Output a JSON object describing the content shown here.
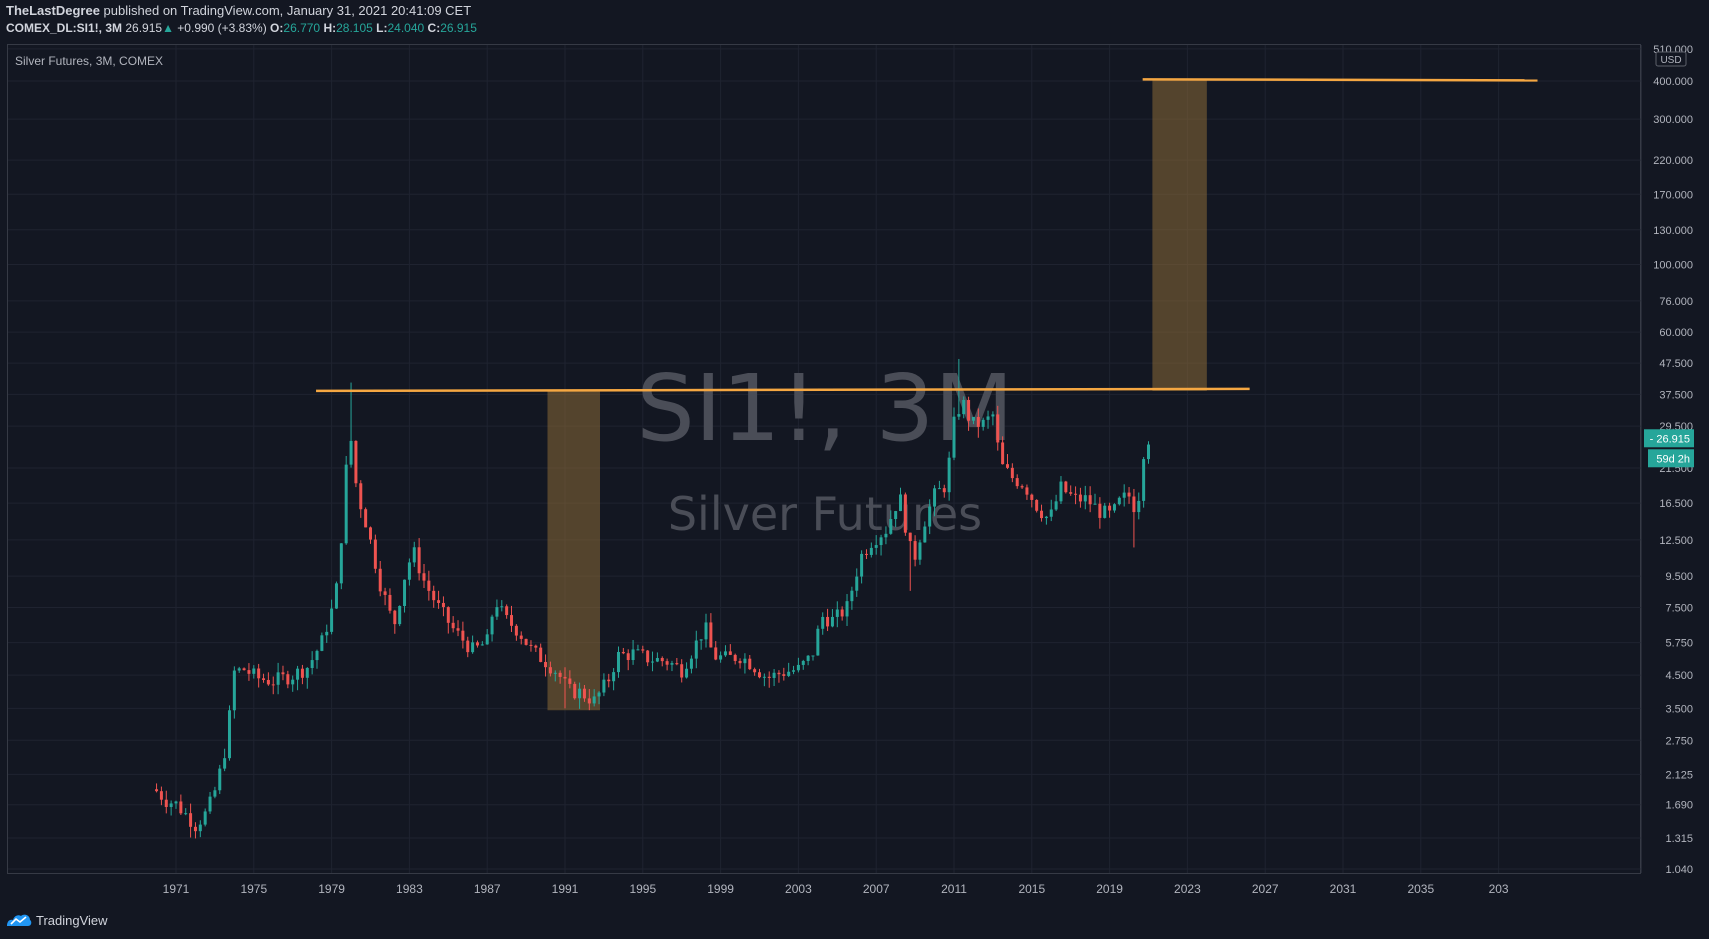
{
  "header": {
    "author": "TheLastDegree",
    "published_text": "published on TradingView.com, January 31, 2021 20:41:09 CET",
    "symbol": "COMEX_DL:SI1!, 3M",
    "last": "26.915",
    "change": "+0.990 (+3.83%)",
    "o_label": "O:",
    "o": "26.770",
    "h_label": "H:",
    "h": "28.105",
    "l_label": "L:",
    "l": "24.040",
    "c_label": "C:",
    "c": "26.915"
  },
  "footer": {
    "brand": "TradingView"
  },
  "chart_data": {
    "type": "candlestick",
    "instrument_label": "Silver Futures, 3M, COMEX",
    "watermark_symbol": "SI1!, 3M",
    "watermark_name": "Silver Futures",
    "currency": "USD",
    "y_scale": "log",
    "y_ticks": [
      "1.040",
      "1.315",
      "1.690",
      "2.125",
      "2.750",
      "3.500",
      "4.500",
      "5.750",
      "7.500",
      "9.500",
      "12.500",
      "16.500",
      "21.500",
      "29.500",
      "37.500",
      "47.500",
      "60.000",
      "76.000",
      "100.000",
      "130.000",
      "170.000",
      "220.000",
      "300.000",
      "400.000",
      "510.000"
    ],
    "x_ticks": [
      "1971",
      "1975",
      "1979",
      "1983",
      "1987",
      "1991",
      "1995",
      "1999",
      "2003",
      "2007",
      "2011",
      "2015",
      "2019",
      "2023",
      "2027",
      "2031",
      "2035",
      "203"
    ],
    "last_price_label": "26.915",
    "countdown_label": "59d 2h",
    "colors": {
      "up": "#26a69a",
      "down": "#ef5350",
      "line": "#f5a742",
      "box": "#8a6a36"
    },
    "horizontal_lines": [
      {
        "price": 38.5,
        "from": 1978.2,
        "to": 2026.2
      },
      {
        "price": 405,
        "from": 2020.7,
        "to": 2041
      }
    ],
    "boxes": [
      {
        "x0": 1990.1,
        "x1": 1992.8,
        "y_low": 3.45,
        "y_high": 38.5
      },
      {
        "x0": 2021.2,
        "x1": 2024.0,
        "y_low": 38.5,
        "y_high": 405
      }
    ],
    "anchors": [
      [
        1969.9,
        1.9
      ],
      [
        1970.5,
        1.75
      ],
      [
        1971.0,
        1.7
      ],
      [
        1971.6,
        1.55
      ],
      [
        1972.0,
        1.45
      ],
      [
        1972.6,
        1.6
      ],
      [
        1973.1,
        1.95
      ],
      [
        1973.6,
        2.7
      ],
      [
        1974.0,
        4.6
      ],
      [
        1974.5,
        4.7
      ],
      [
        1975.2,
        4.4
      ],
      [
        1976.0,
        4.3
      ],
      [
        1977.0,
        4.5
      ],
      [
        1977.8,
        4.8
      ],
      [
        1978.5,
        5.8
      ],
      [
        1979.2,
        8.0
      ],
      [
        1979.6,
        15.0
      ],
      [
        1979.9,
        30.0
      ],
      [
        1980.3,
        18.0
      ],
      [
        1980.8,
        14.0
      ],
      [
        1981.5,
        9.0
      ],
      [
        1982.2,
        6.5
      ],
      [
        1982.8,
        9.8
      ],
      [
        1983.2,
        11.5
      ],
      [
        1983.8,
        9.0
      ],
      [
        1984.5,
        7.5
      ],
      [
        1985.3,
        6.3
      ],
      [
        1986.3,
        5.4
      ],
      [
        1987.0,
        5.8
      ],
      [
        1987.4,
        8.0
      ],
      [
        1987.9,
        6.9
      ],
      [
        1988.6,
        6.3
      ],
      [
        1989.3,
        5.4
      ],
      [
        1990.0,
        5.0
      ],
      [
        1990.6,
        4.6
      ],
      [
        1991.2,
        4.0
      ],
      [
        1991.8,
        3.95
      ],
      [
        1992.5,
        3.7
      ],
      [
        1993.2,
        4.3
      ],
      [
        1993.7,
        5.2
      ],
      [
        1994.5,
        5.3
      ],
      [
        1995.3,
        5.1
      ],
      [
        1996.2,
        5.0
      ],
      [
        1997.0,
        4.7
      ],
      [
        1997.8,
        5.8
      ],
      [
        1998.2,
        6.5
      ],
      [
        1998.6,
        5.2
      ],
      [
        1999.3,
        5.1
      ],
      [
        2000.0,
        5.2
      ],
      [
        2000.6,
        4.9
      ],
      [
        2001.4,
        4.4
      ],
      [
        2002.2,
        4.6
      ],
      [
        2003.0,
        4.7
      ],
      [
        2003.7,
        5.2
      ],
      [
        2004.2,
        7.0
      ],
      [
        2004.8,
        6.8
      ],
      [
        2005.5,
        7.5
      ],
      [
        2006.2,
        11.0
      ],
      [
        2006.8,
        12.5
      ],
      [
        2007.5,
        13.5
      ],
      [
        2008.2,
        17.5
      ],
      [
        2008.6,
        13.0
      ],
      [
        2008.9,
        10.5
      ],
      [
        2009.4,
        14.0
      ],
      [
        2010.0,
        17.5
      ],
      [
        2010.6,
        19.0
      ],
      [
        2011.0,
        30.0
      ],
      [
        2011.4,
        36.0
      ],
      [
        2011.9,
        30.0
      ],
      [
        2012.5,
        30.0
      ],
      [
        2013.0,
        32.0
      ],
      [
        2013.4,
        22.0
      ],
      [
        2014.0,
        20.0
      ],
      [
        2014.6,
        19.0
      ],
      [
        2015.3,
        16.0
      ],
      [
        2015.9,
        14.5
      ],
      [
        2016.5,
        18.5
      ],
      [
        2017.2,
        17.0
      ],
      [
        2017.8,
        17.0
      ],
      [
        2018.5,
        15.5
      ],
      [
        2019.1,
        15.0
      ],
      [
        2019.6,
        17.0
      ],
      [
        2020.1,
        17.5
      ],
      [
        2020.4,
        15.0
      ],
      [
        2020.7,
        24.0
      ],
      [
        2021.0,
        26.9
      ]
    ]
  }
}
